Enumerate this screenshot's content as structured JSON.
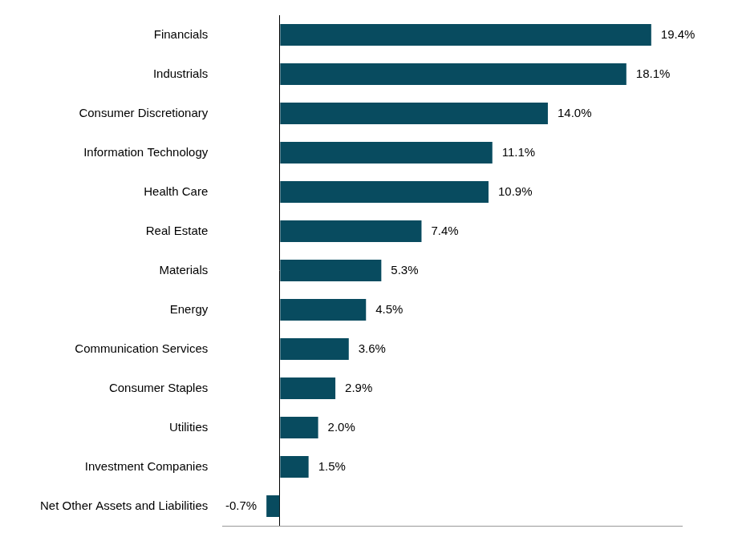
{
  "chart_data": {
    "type": "bar",
    "orientation": "horizontal",
    "categories": [
      "Financials",
      "Industrials",
      "Consumer Discretionary",
      "Information Technology",
      "Health Care",
      "Real Estate",
      "Materials",
      "Energy",
      "Communication Services",
      "Consumer Staples",
      "Utilities",
      "Investment Companies",
      "Net Other Assets and Liabilities"
    ],
    "values": [
      19.4,
      18.1,
      14.0,
      11.1,
      10.9,
      7.4,
      5.3,
      4.5,
      3.6,
      2.9,
      2.0,
      1.5,
      -0.7
    ],
    "value_labels": [
      "19.4%",
      "18.1%",
      "14.0%",
      "11.1%",
      "10.9%",
      "7.4%",
      "5.3%",
      "4.5%",
      "3.6%",
      "2.9%",
      "2.0%",
      "1.5%",
      "-0.7%"
    ],
    "color": "#084b5f",
    "xlim": [
      -3,
      21
    ],
    "xticks": [
      0
    ],
    "grid": true,
    "data_labels": true,
    "tick_labels": "y"
  }
}
